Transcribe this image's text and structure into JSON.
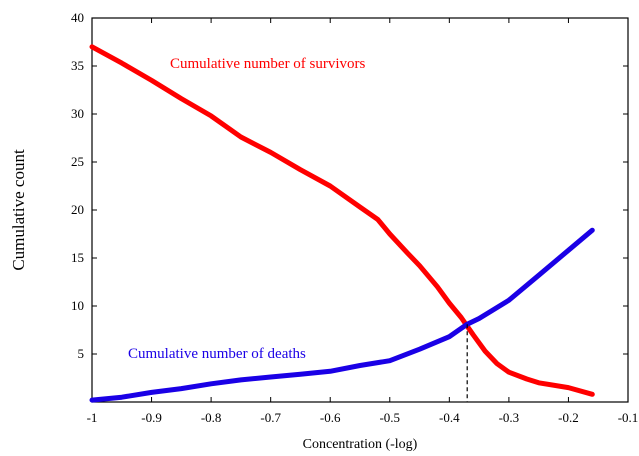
{
  "chart_data": {
    "type": "line",
    "title": "",
    "xlabel": "Concentration (-log)",
    "ylabel": "Cumulative count",
    "xlim": [
      -1,
      -0.1
    ],
    "ylim": [
      0,
      40
    ],
    "x_ticks": [
      -1,
      -0.9,
      -0.8,
      -0.7,
      -0.6,
      -0.5,
      -0.4,
      -0.3,
      -0.2,
      -0.1
    ],
    "x_tick_labels": [
      "-1",
      "-0.9",
      "-0.8",
      "-0.7",
      "-0.6",
      "-0.5",
      "-0.4",
      "-0.3",
      "-0.2",
      "-0.1"
    ],
    "y_ticks": [
      5,
      10,
      15,
      20,
      25,
      30,
      35,
      40
    ],
    "y_tick_labels": [
      "5",
      "10",
      "15",
      "20",
      "25",
      "30",
      "35",
      "40"
    ],
    "grid": false,
    "series": [
      {
        "name": "Cumulative number of survivors",
        "color": "#ff0000",
        "x": [
          -1.0,
          -0.95,
          -0.9,
          -0.85,
          -0.8,
          -0.75,
          -0.7,
          -0.65,
          -0.6,
          -0.55,
          -0.52,
          -0.5,
          -0.47,
          -0.45,
          -0.42,
          -0.4,
          -0.38,
          -0.36,
          -0.34,
          -0.32,
          -0.3,
          -0.27,
          -0.25,
          -0.2,
          -0.16
        ],
        "y": [
          37.0,
          35.3,
          33.5,
          31.6,
          29.8,
          27.6,
          26.0,
          24.2,
          22.5,
          20.3,
          19.0,
          17.5,
          15.5,
          14.2,
          12.0,
          10.3,
          8.8,
          7.0,
          5.3,
          4.0,
          3.1,
          2.4,
          2.0,
          1.5,
          0.8
        ]
      },
      {
        "name": "Cumulative number of deaths",
        "color": "#1a00e6",
        "x": [
          -1.0,
          -0.95,
          -0.9,
          -0.85,
          -0.8,
          -0.75,
          -0.7,
          -0.65,
          -0.6,
          -0.55,
          -0.5,
          -0.45,
          -0.4,
          -0.37,
          -0.35,
          -0.3,
          -0.25,
          -0.2,
          -0.16
        ],
        "y": [
          0.2,
          0.5,
          1.0,
          1.4,
          1.9,
          2.3,
          2.6,
          2.9,
          3.2,
          3.8,
          4.3,
          5.5,
          6.8,
          8.1,
          8.7,
          10.6,
          13.2,
          15.8,
          17.9
        ]
      }
    ],
    "annotations": [
      {
        "text": "Cumulative number of survivors",
        "series": 0
      },
      {
        "text": "Cumulative number of deaths",
        "series": 1
      }
    ],
    "intersection": {
      "x": -0.37,
      "y": 8.1,
      "style": "dashed-drop-line"
    }
  }
}
